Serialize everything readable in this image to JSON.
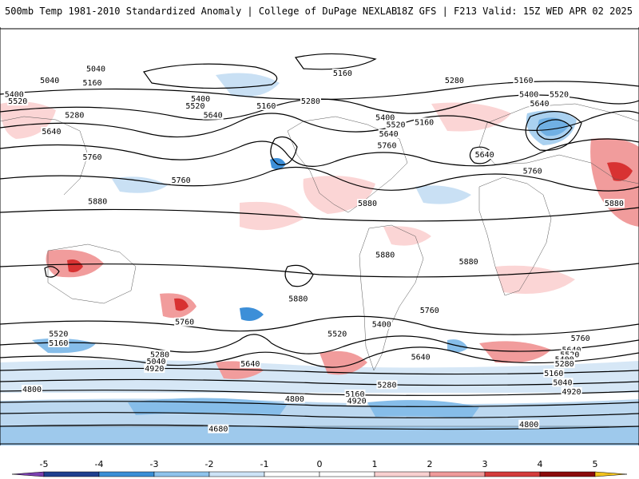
{
  "header": {
    "title_left": "500mb Temp 1981-2010 Standardized Anomaly | College of DuPage NEXLAB",
    "title_right": "18Z GFS | F213 Valid: 15Z WED APR 02 2025"
  },
  "colorbar": {
    "ticks": [
      "-5",
      "-4",
      "-3",
      "-2",
      "-1",
      "0",
      "1",
      "2",
      "3",
      "4",
      "5"
    ],
    "colors": [
      "#7a3fb0",
      "#1e3f8f",
      "#3a8fd6",
      "#8ec3ec",
      "#cde3f6",
      "#ffffff",
      "#ffffff",
      "#f8d0d0",
      "#ef9a9a",
      "#d43b3b",
      "#8b0a0a",
      "#f2c21b"
    ]
  },
  "anomaly_colors": {
    "light_blue": "#c9e0f4",
    "mid_blue": "#86bde9",
    "dark_blue": "#3d8fd8",
    "light_red": "#fbd5d5",
    "mid_red": "#f19c9c",
    "dark_red": "#d83232",
    "southern_band": "#bcd8f0"
  },
  "contour_labels": [
    {
      "text": "5040",
      "lon": -126,
      "lat": 72
    },
    {
      "text": "5040",
      "lon": -152,
      "lat": 67
    },
    {
      "text": "5160",
      "lon": -128,
      "lat": 66
    },
    {
      "text": "5160",
      "lon": 13,
      "lat": 70
    },
    {
      "text": "5160",
      "lon": 115,
      "lat": 67
    },
    {
      "text": "5400",
      "lon": -172,
      "lat": 61
    },
    {
      "text": "5520",
      "lon": -170,
      "lat": 58
    },
    {
      "text": "5280",
      "lon": -138,
      "lat": 52
    },
    {
      "text": "5400",
      "lon": -67,
      "lat": 59
    },
    {
      "text": "5520",
      "lon": -70,
      "lat": 56
    },
    {
      "text": "5640",
      "lon": -60,
      "lat": 52
    },
    {
      "text": "5160",
      "lon": -30,
      "lat": 56
    },
    {
      "text": "5280",
      "lon": -5,
      "lat": 58
    },
    {
      "text": "5280",
      "lon": 76,
      "lat": 67
    },
    {
      "text": "5400",
      "lon": 118,
      "lat": 61
    },
    {
      "text": "5520",
      "lon": 135,
      "lat": 61
    },
    {
      "text": "5640",
      "lon": 124,
      "lat": 57
    },
    {
      "text": "5400",
      "lon": 37,
      "lat": 51
    },
    {
      "text": "5520",
      "lon": 43,
      "lat": 48
    },
    {
      "text": "5160",
      "lon": 59,
      "lat": 49
    },
    {
      "text": "5640",
      "lon": 39,
      "lat": 44
    },
    {
      "text": "5760",
      "lon": 38,
      "lat": 39
    },
    {
      "text": "5640",
      "lon": -151,
      "lat": 45
    },
    {
      "text": "5760",
      "lon": -128,
      "lat": 34
    },
    {
      "text": "5760",
      "lon": -78,
      "lat": 24
    },
    {
      "text": "5640",
      "lon": 93,
      "lat": 35
    },
    {
      "text": "5760",
      "lon": 120,
      "lat": 28
    },
    {
      "text": "5880",
      "lon": -125,
      "lat": 15
    },
    {
      "text": "5880",
      "lon": 27,
      "lat": 14
    },
    {
      "text": "5880",
      "lon": 166,
      "lat": 14
    },
    {
      "text": "5880",
      "lon": 37,
      "lat": -8
    },
    {
      "text": "5880",
      "lon": 84,
      "lat": -11
    },
    {
      "text": "5880",
      "lon": -12,
      "lat": -27
    },
    {
      "text": "5760",
      "lon": -76,
      "lat": -37
    },
    {
      "text": "5760",
      "lon": 62,
      "lat": -32
    },
    {
      "text": "5400",
      "lon": 35,
      "lat": -38
    },
    {
      "text": "5520",
      "lon": 10,
      "lat": -42
    },
    {
      "text": "5640",
      "lon": 57,
      "lat": -52
    },
    {
      "text": "5640",
      "lon": -39,
      "lat": -55
    },
    {
      "text": "5520",
      "lon": -147,
      "lat": -42
    },
    {
      "text": "5160",
      "lon": -147,
      "lat": -46
    },
    {
      "text": "5280",
      "lon": -90,
      "lat": -51
    },
    {
      "text": "5040",
      "lon": -92,
      "lat": -54
    },
    {
      "text": "4920",
      "lon": -93,
      "lat": -57
    },
    {
      "text": "5280",
      "lon": 38,
      "lat": -64
    },
    {
      "text": "5160",
      "lon": 20,
      "lat": -68
    },
    {
      "text": "4800",
      "lon": -162,
      "lat": -66
    },
    {
      "text": "4800",
      "lon": -14,
      "lat": -70
    },
    {
      "text": "4920",
      "lon": 21,
      "lat": -71
    },
    {
      "text": "4680",
      "lon": -57,
      "lat": -83
    },
    {
      "text": "4800",
      "lon": 118,
      "lat": -81
    },
    {
      "text": "5760",
      "lon": 147,
      "lat": -44
    },
    {
      "text": "5640",
      "lon": 142,
      "lat": -49
    },
    {
      "text": "5520",
      "lon": 141,
      "lat": -51
    },
    {
      "text": "5400",
      "lon": 138,
      "lat": -53
    },
    {
      "text": "5280",
      "lon": 138,
      "lat": -55
    },
    {
      "text": "5160",
      "lon": 132,
      "lat": -59
    },
    {
      "text": "5040",
      "lon": 137,
      "lat": -63
    },
    {
      "text": "4920",
      "lon": 142,
      "lat": -67
    }
  ]
}
